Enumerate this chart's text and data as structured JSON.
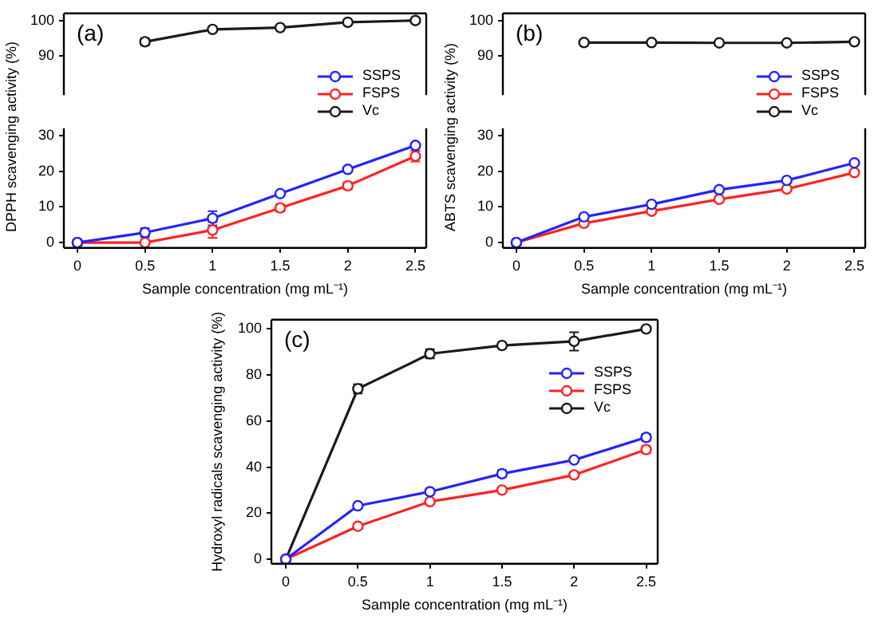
{
  "chart_data": [
    {
      "type": "line",
      "title": "(a)",
      "ylabel": "DPPH scavenging activity (%)",
      "x": [
        0.5,
        1,
        1.5,
        2,
        2.5
      ],
      "xlim": [
        -0.1,
        2.58
      ],
      "ylim": [
        79,
        102
      ],
      "yticks": [
        90,
        100
      ],
      "tick_labels": "y",
      "marker": "circle",
      "series": [
        {
          "color": "#1a1a1a",
          "values": [
            94,
            97.5,
            98,
            99.5,
            100
          ],
          "errors": [
            1,
            null,
            null,
            null,
            null
          ]
        }
      ]
    },
    {
      "type": "line",
      "xlabel": "Sample concentration (mg mL⁻¹)",
      "x": [
        0,
        0.5,
        1,
        1.5,
        2,
        2.5
      ],
      "xlim": [
        -0.1,
        2.58
      ],
      "xticks": [
        0,
        0.5,
        1,
        1.5,
        2,
        2.5
      ],
      "ylim": [
        -1.5,
        32
      ],
      "yticks": [
        0,
        10,
        20,
        30
      ],
      "legend": "top right",
      "marker": "circle",
      "series": [
        {
          "name": "SSPS",
          "color": "#2323ff",
          "values": [
            0,
            2.8,
            6.8,
            13.7,
            20.5,
            27.2
          ],
          "errors": [
            null,
            1.2,
            2,
            0.5,
            0.5,
            0.5
          ]
        },
        {
          "name": "FSPS",
          "color": "#ff2222",
          "values": [
            0,
            0,
            3.5,
            9.7,
            15.9,
            24.2
          ],
          "errors": [
            null,
            null,
            2.2,
            1,
            1,
            1.5
          ]
        },
        {
          "name": "Vc",
          "color": "#1a1a1a",
          "values": [
            0,
            null,
            null,
            null,
            null,
            null
          ]
        }
      ]
    },
    {
      "type": "line",
      "title": "(b)",
      "ylabel": "ABTS scavenging activity (%)",
      "x": [
        0.5,
        1,
        1.5,
        2,
        2.5
      ],
      "xlim": [
        -0.1,
        2.58
      ],
      "ylim": [
        79,
        102
      ],
      "yticks": [
        90,
        100
      ],
      "tick_labels": "y",
      "marker": "circle",
      "series": [
        {
          "color": "#1a1a1a",
          "values": [
            93.8,
            93.8,
            93.7,
            93.7,
            94
          ]
        }
      ]
    },
    {
      "type": "line",
      "xlabel": "Sample concentration (mg mL⁻¹)",
      "x": [
        0,
        0.5,
        1,
        1.5,
        2,
        2.5
      ],
      "xlim": [
        -0.1,
        2.58
      ],
      "xticks": [
        0,
        0.5,
        1,
        1.5,
        2,
        2.5
      ],
      "ylim": [
        -1.5,
        32
      ],
      "yticks": [
        0,
        10,
        20,
        30
      ],
      "legend": "top right",
      "marker": "circle",
      "series": [
        {
          "name": "SSPS",
          "color": "#2323ff",
          "values": [
            0,
            7.2,
            10.7,
            14.8,
            17.4,
            22.3
          ]
        },
        {
          "name": "FSPS",
          "color": "#ff2222",
          "values": [
            0,
            5.4,
            8.8,
            12.1,
            15,
            19.6
          ]
        },
        {
          "name": "Vc",
          "color": "#1a1a1a",
          "values": [
            0,
            null,
            null,
            null,
            null,
            null
          ]
        }
      ]
    },
    {
      "type": "line",
      "title": "(c)",
      "ylabel": "Hydroxyl radicals scavenging activity (%)",
      "xlabel": "Sample concentration (mg mL⁻¹)",
      "x": [
        0,
        0.5,
        1,
        1.5,
        2,
        2.5
      ],
      "xlim": [
        -0.1,
        2.58
      ],
      "xticks": [
        0,
        0.5,
        1,
        1.5,
        2,
        2.5
      ],
      "ylim": [
        -2,
        104
      ],
      "yticks": [
        0,
        20,
        40,
        60,
        80,
        100
      ],
      "legend": "top right",
      "marker": "circle",
      "series": [
        {
          "name": "SSPS",
          "color": "#2323ff",
          "values": [
            0,
            23.2,
            29.3,
            37.1,
            43.1,
            52.9
          ],
          "errors": [
            null,
            null,
            1,
            1.5,
            null,
            1.5
          ]
        },
        {
          "name": "FSPS",
          "color": "#ff2222",
          "values": [
            0,
            14.3,
            25,
            30,
            36.6,
            47.6
          ],
          "errors": [
            null,
            1,
            null,
            null,
            1,
            1.5
          ]
        },
        {
          "name": "Vc",
          "color": "#1a1a1a",
          "values": [
            0,
            74,
            89.2,
            92.8,
            94.6,
            100
          ],
          "errors": [
            null,
            2,
            2,
            null,
            4,
            null
          ]
        }
      ]
    }
  ]
}
